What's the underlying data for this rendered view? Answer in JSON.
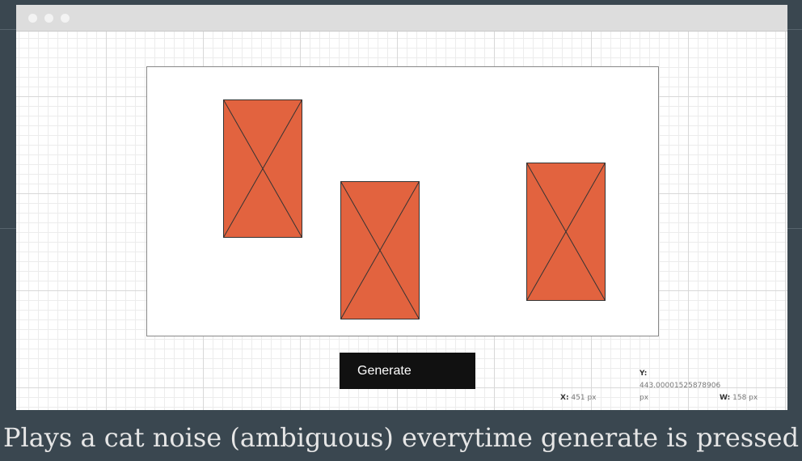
{
  "window": {
    "controls": [
      "close-dot",
      "minimize-dot",
      "maximize-dot"
    ]
  },
  "canvas": {
    "placeholders": [
      {
        "name": "image-placeholder-1",
        "fill": "#e2633f",
        "stroke": "#333333"
      },
      {
        "name": "image-placeholder-2",
        "fill": "#e2633f",
        "stroke": "#333333"
      },
      {
        "name": "image-placeholder-3",
        "fill": "#e2633f",
        "stroke": "#333333"
      }
    ]
  },
  "button": {
    "label": "Generate"
  },
  "readout": {
    "x_label": "X:",
    "x_value": "451 px",
    "y_label": "Y:",
    "y_value": "443.00001525878906",
    "y_unit": "px",
    "w_label": "W:",
    "w_value": "158 px"
  },
  "caption": "Plays a cat noise (ambiguous) everytime generate is pressed"
}
